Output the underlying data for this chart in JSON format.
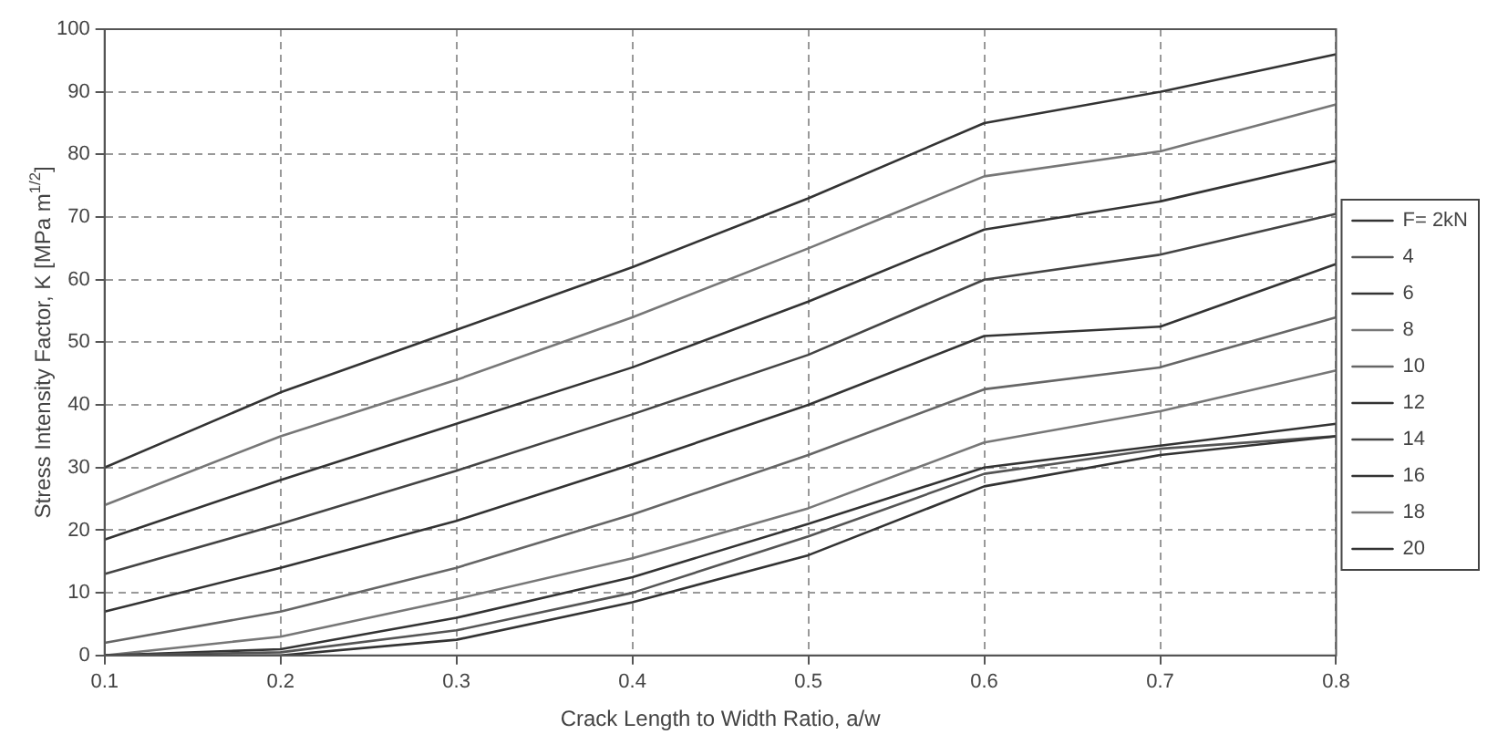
{
  "chart_data": {
    "type": "line",
    "xlabel": "Crack Length to Width Ratio, a/w",
    "ylabel": "Stress Intensity Factor, K [MPa m$^{1/2}$]",
    "x": [
      0.1,
      0.2,
      0.3,
      0.4,
      0.5,
      0.6,
      0.7,
      0.8
    ],
    "xlim": [
      0.1,
      0.8
    ],
    "xticks": [
      0.1,
      0.2,
      0.3,
      0.4,
      0.5,
      0.6,
      0.7,
      0.8
    ],
    "ylim": [
      0,
      100
    ],
    "yticks": [
      0,
      10,
      20,
      30,
      40,
      50,
      60,
      70,
      80,
      90,
      100
    ],
    "grid": true,
    "legend": "right",
    "marker": "none",
    "series": [
      {
        "name": "F= 2kN",
        "color": "#333333",
        "values": [
          0,
          0,
          2.5,
          8.5,
          16,
          27,
          32,
          35
        ]
      },
      {
        "name": "4",
        "color": "#555555",
        "values": [
          0,
          0.5,
          4,
          10,
          19,
          29,
          33,
          35
        ]
      },
      {
        "name": "6",
        "color": "#333333",
        "values": [
          0,
          1,
          6,
          12.5,
          21,
          30,
          33.5,
          37
        ]
      },
      {
        "name": "8",
        "color": "#777777",
        "values": [
          0,
          3,
          9,
          15.5,
          23.5,
          34,
          39,
          45.5
        ]
      },
      {
        "name": "10",
        "color": "#666666",
        "values": [
          2,
          7,
          14,
          22.5,
          32,
          42.5,
          46,
          54
        ]
      },
      {
        "name": "12",
        "color": "#333333",
        "values": [
          7,
          14,
          21.5,
          30.5,
          40,
          51,
          52.5,
          62.5
        ]
      },
      {
        "name": "14",
        "color": "#444444",
        "values": [
          13,
          21,
          29.5,
          38.5,
          48,
          60,
          64,
          70.5
        ]
      },
      {
        "name": "16",
        "color": "#333333",
        "values": [
          18.5,
          28,
          37,
          46,
          56.5,
          68,
          72.5,
          79
        ]
      },
      {
        "name": "18",
        "color": "#777777",
        "values": [
          24,
          35,
          44,
          54,
          65,
          76.5,
          80.5,
          88
        ]
      },
      {
        "name": "20",
        "color": "#333333",
        "values": [
          30,
          42,
          52,
          62,
          73,
          85,
          90,
          96
        ]
      }
    ]
  }
}
